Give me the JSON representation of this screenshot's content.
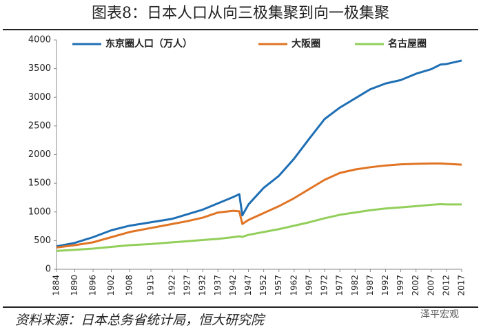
{
  "chart_data": {
    "type": "line",
    "title": "图表8：日本人口从向三极集聚到向一极集聚",
    "source": "资料来源：日本总务省统计局，恒大研究院",
    "watermark": "泽平宏观",
    "x": [
      1884,
      1890,
      1896,
      1902,
      1908,
      1915,
      1922,
      1927,
      1932,
      1937,
      1942,
      1944,
      1945,
      1947,
      1952,
      1957,
      1962,
      1967,
      1972,
      1977,
      1982,
      1987,
      1992,
      1997,
      2002,
      2007,
      2010,
      2012,
      2017
    ],
    "series": [
      {
        "name": "东京圈人口（万人）",
        "color": "#1f6fb4",
        "values": [
          400,
          460,
          560,
          680,
          760,
          820,
          880,
          960,
          1040,
          1150,
          1260,
          1310,
          940,
          1130,
          1420,
          1630,
          1930,
          2280,
          2620,
          2820,
          2980,
          3140,
          3240,
          3300,
          3410,
          3490,
          3570,
          3580,
          3640
        ]
      },
      {
        "name": "大阪圈",
        "color": "#e07424",
        "values": [
          380,
          420,
          470,
          560,
          650,
          720,
          790,
          840,
          900,
          990,
          1020,
          1010,
          790,
          860,
          980,
          1100,
          1240,
          1400,
          1560,
          1680,
          1740,
          1780,
          1810,
          1830,
          1840,
          1845,
          1845,
          1840,
          1825
        ]
      },
      {
        "name": "名古屋圈",
        "color": "#92cf5a",
        "values": [
          320,
          340,
          360,
          390,
          420,
          440,
          470,
          490,
          510,
          530,
          560,
          575,
          565,
          600,
          650,
          700,
          760,
          820,
          890,
          950,
          990,
          1030,
          1060,
          1080,
          1100,
          1125,
          1135,
          1130,
          1130
        ]
      }
    ],
    "xlim": [
      1884,
      2017
    ],
    "xticks": [
      1884,
      1890,
      1896,
      1902,
      1908,
      1915,
      1922,
      1927,
      1932,
      1937,
      1942,
      1947,
      1952,
      1957,
      1962,
      1967,
      1972,
      1977,
      1982,
      1987,
      1992,
      1997,
      2002,
      2007,
      2012,
      2017
    ],
    "ylim": [
      0,
      4000
    ],
    "yticks": [
      0,
      500,
      1000,
      1500,
      2000,
      2500,
      3000,
      3500,
      4000
    ],
    "grid": false,
    "legend": "top"
  }
}
